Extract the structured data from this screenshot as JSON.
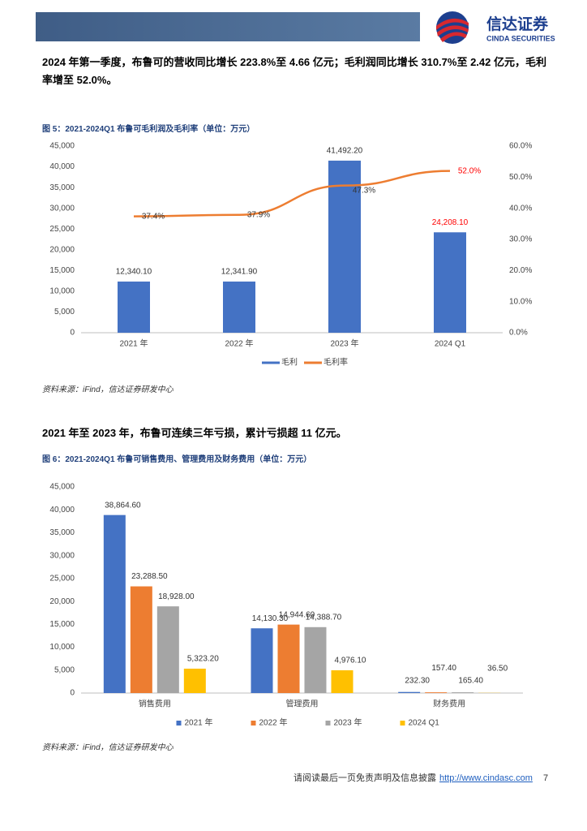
{
  "header": {
    "logo_cn": "信达证券",
    "logo_en": "CINDA SECURITIES"
  },
  "paragraphs": [
    "2024 年第一季度，布鲁可的营收同比增长 223.8%至 4.66 亿元；毛利润同比增长 310.7%至 2.42 亿元，毛利率增至 52.0%。",
    "2021 年至 2023 年，布鲁可连续三年亏损，累计亏损超 11 亿元。"
  ],
  "chart_data": [
    {
      "type": "bar",
      "title": "图 5：2021-2024Q1 布鲁可毛利润及毛利率（单位：万元）",
      "categories": [
        "2021 年",
        "2022 年",
        "2023 年",
        "2024 Q1"
      ],
      "series": [
        {
          "name": "毛利",
          "color": "#4472c4",
          "values": [
            12340.1,
            12341.9,
            41492.2,
            24208.1
          ],
          "value_labels": [
            "12,340.10",
            "12,341.90",
            "41,492.20",
            "24,208.10"
          ]
        },
        {
          "name": "毛利率",
          "type": "line",
          "axis": "y2",
          "color": "#ed7d31",
          "values": [
            37.4,
            37.9,
            47.3,
            52.0
          ],
          "value_labels": [
            "37.4%",
            "37.9%",
            "47.3%",
            "52.0%"
          ]
        }
      ],
      "ylim": [
        0,
        45000
      ],
      "yticks": [
        0,
        {
          "value": 5000,
          "label": "5,000"
        },
        {
          "value": 10000,
          "label": "10,000"
        },
        {
          "value": 15000,
          "label": "15,000"
        },
        {
          "value": 20000,
          "label": "20,000"
        },
        {
          "value": 25000,
          "label": "25,000"
        },
        {
          "value": 30000,
          "label": "30,000"
        },
        {
          "value": 35000,
          "label": "35,000"
        },
        {
          "value": 40000,
          "label": "40,000"
        },
        {
          "value": 45000,
          "label": "45,000"
        }
      ],
      "y2lim": [
        0,
        60
      ],
      "y2ticks": [
        {
          "value": 0,
          "label": "0.0%"
        },
        {
          "value": 10,
          "label": "10.0%"
        },
        {
          "value": 20,
          "label": "20.0%"
        },
        {
          "value": 30,
          "label": "30.0%"
        },
        {
          "value": 40,
          "label": "40.0%"
        },
        {
          "value": 50,
          "label": "50.0%"
        },
        {
          "value": 60,
          "label": "60.0%"
        }
      ],
      "grid": false,
      "legend": "bottom",
      "source": "资料来源：iFind，信达证券研发中心"
    },
    {
      "type": "bar",
      "title": "图 6：2021-2024Q1 布鲁可销售费用、管理费用及财务费用（单位：万元）",
      "categories": [
        "销售费用",
        "管理费用",
        "财务费用"
      ],
      "series": [
        {
          "name": "2021 年",
          "color": "#4472c4",
          "values": [
            38864.6,
            14130.3,
            232.3
          ],
          "value_labels": [
            "38,864.60",
            "14,130.30",
            "232.30"
          ]
        },
        {
          "name": "2022 年",
          "color": "#ed7d31",
          "values": [
            23288.5,
            14944.6,
            157.4
          ],
          "value_labels": [
            "23,288.50",
            "14,944.60",
            "157.40"
          ]
        },
        {
          "name": "2023 年",
          "color": "#a5a5a5",
          "values": [
            18928.0,
            14388.7,
            165.4
          ],
          "value_labels": [
            "18,928.00",
            "14,388.70",
            "165.40"
          ]
        },
        {
          "name": "2024 Q1",
          "color": "#ffc000",
          "values": [
            5323.2,
            4976.1,
            36.5
          ],
          "value_labels": [
            "5,323.20",
            "4,976.10",
            "36.50"
          ]
        }
      ],
      "ylim": [
        0,
        45000
      ],
      "yticks": [
        0,
        {
          "value": 5000,
          "label": "5,000"
        },
        {
          "value": 10000,
          "label": "10,000"
        },
        {
          "value": 15000,
          "label": "15,000"
        },
        {
          "value": 20000,
          "label": "20,000"
        },
        {
          "value": 25000,
          "label": "25,000"
        },
        {
          "value": 30000,
          "label": "30,000"
        },
        {
          "value": 35000,
          "label": "35,000"
        },
        {
          "value": 40000,
          "label": "40,000"
        },
        {
          "value": 45000,
          "label": "45,000"
        }
      ],
      "grid": false,
      "legend": "bottom",
      "source": "资料来源：iFind，信达证券研发中心"
    }
  ],
  "footer": {
    "disclaimer": "请阅读最后一页免责声明及信息披露",
    "link": "http://www.cindasc.com",
    "page": "7"
  }
}
